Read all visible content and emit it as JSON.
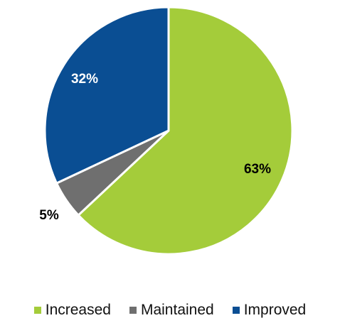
{
  "chart_data": {
    "type": "pie",
    "slices": [
      {
        "label": "Increased",
        "value": 63,
        "display": "63%",
        "color": "#a4cc3a",
        "label_color": "#000000"
      },
      {
        "label": "Maintained",
        "value": 5,
        "display": "5%",
        "color": "#6f6f6f",
        "label_color": "#000000"
      },
      {
        "label": "Improved",
        "value": 32,
        "display": "32%",
        "color": "#0a4e93",
        "label_color": "#ffffff"
      }
    ],
    "start_angle": "12 o'clock",
    "direction": "clockwise",
    "legend_position": "bottom"
  }
}
